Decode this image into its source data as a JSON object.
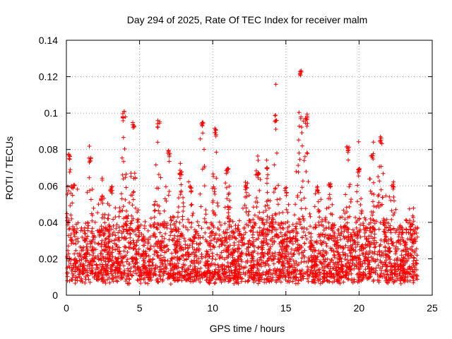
{
  "chart_data": {
    "type": "scatter",
    "title": "Day 294 of 2025, Rate Of TEC Index for receiver malm",
    "xlabel": "GPS time / hours",
    "ylabel": "ROTI / TECUs",
    "xlim": [
      0,
      25
    ],
    "ylim": [
      0,
      0.14
    ],
    "xticks": [
      "0",
      "5",
      "10",
      "15",
      "20",
      "25"
    ],
    "xtick_values": [
      0,
      5,
      10,
      15,
      20,
      25
    ],
    "yticks": [
      "0",
      "0.02",
      "0.04",
      "0.06",
      "0.08",
      "0.1",
      "0.12",
      "0.14"
    ],
    "ytick_values": [
      0,
      0.02,
      0.04,
      0.06,
      0.08,
      0.1,
      0.12,
      0.14
    ],
    "grid": true,
    "marker": "+",
    "color": "#ff0000",
    "series": [
      {
        "name": "ROTI",
        "x_range": [
          0,
          24
        ],
        "baseline": 0.018,
        "peaks": [
          {
            "x": 0.2,
            "y": 0.078
          },
          {
            "x": 0.5,
            "y": 0.062
          },
          {
            "x": 1.6,
            "y": 0.076
          },
          {
            "x": 2.4,
            "y": 0.055
          },
          {
            "x": 3.1,
            "y": 0.06
          },
          {
            "x": 3.9,
            "y": 0.101
          },
          {
            "x": 4.6,
            "y": 0.096
          },
          {
            "x": 6.3,
            "y": 0.096
          },
          {
            "x": 7.0,
            "y": 0.08
          },
          {
            "x": 7.8,
            "y": 0.068
          },
          {
            "x": 8.5,
            "y": 0.06
          },
          {
            "x": 9.3,
            "y": 0.097
          },
          {
            "x": 10.2,
            "y": 0.091
          },
          {
            "x": 11.0,
            "y": 0.07
          },
          {
            "x": 12.3,
            "y": 0.062
          },
          {
            "x": 13.1,
            "y": 0.068
          },
          {
            "x": 13.7,
            "y": 0.07
          },
          {
            "x": 14.3,
            "y": 0.099
          },
          {
            "x": 15.0,
            "y": 0.06
          },
          {
            "x": 16.0,
            "y": 0.124
          },
          {
            "x": 16.4,
            "y": 0.1
          },
          {
            "x": 17.2,
            "y": 0.06
          },
          {
            "x": 18.0,
            "y": 0.062
          },
          {
            "x": 19.2,
            "y": 0.082
          },
          {
            "x": 20.0,
            "y": 0.07
          },
          {
            "x": 20.9,
            "y": 0.078
          },
          {
            "x": 21.5,
            "y": 0.087
          },
          {
            "x": 22.3,
            "y": 0.063
          },
          {
            "x": 23.5,
            "y": 0.04
          }
        ]
      }
    ]
  }
}
